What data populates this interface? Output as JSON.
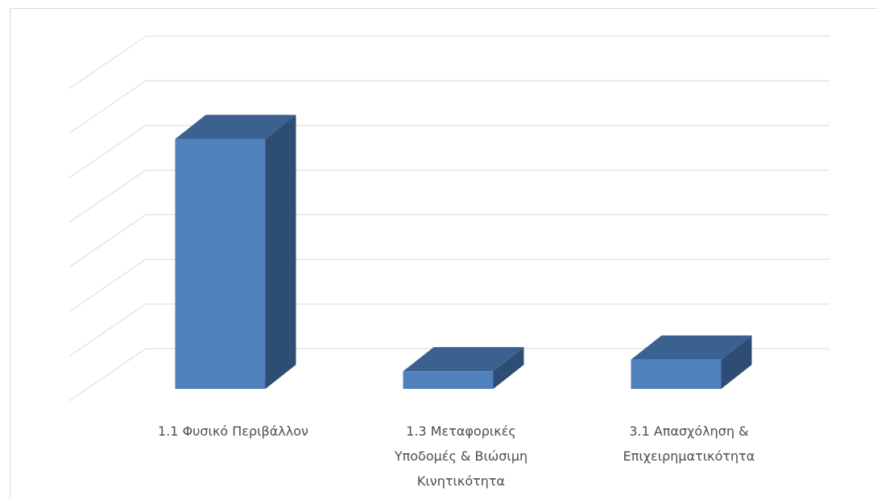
{
  "chart_data": {
    "type": "bar",
    "title": "",
    "xlabel": "",
    "ylabel": "",
    "categories": [
      [
        "1.1 Φυσικό Περιβάλλον"
      ],
      [
        "1.3 Μεταφορικές",
        "Υποδομές & Βιώσιμη",
        "Κινητικότητα"
      ],
      [
        "3.1 Απασχόληση &",
        "Επιχειρηματικότητα"
      ]
    ],
    "values": [
      6.4,
      0.45,
      0.75
    ],
    "ylim": [
      0,
      8
    ],
    "grid": true,
    "legend": "none",
    "three_d": true
  },
  "colors": {
    "bar_front": "#4f81bd",
    "bar_side": "#2e4d74",
    "bar_top": "#3a6190",
    "grid": "#d9d9d9",
    "title": "#1f3c66"
  }
}
